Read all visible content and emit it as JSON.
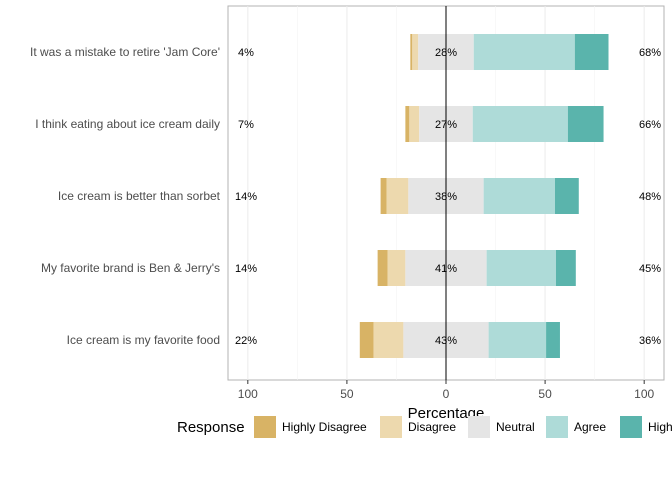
{
  "chart_data": {
    "type": "bar",
    "subtype": "diverging-stacked-likert",
    "xlabel": "Percentage",
    "xlim": [
      -110,
      110
    ],
    "xticks": [
      -100,
      -50,
      0,
      50,
      100
    ],
    "xtick_labels": [
      "100",
      "50",
      "0",
      "50",
      "100"
    ],
    "grid": true,
    "legend_position": "bottom",
    "legend_title": "Response",
    "levels": [
      "Highly Disagree",
      "Disagree",
      "Neutral",
      "Agree",
      "Highly Agree"
    ],
    "colors": {
      "Highly Disagree": "#D8B365",
      "Disagree": "#EDD9AE",
      "Neutral": "#E5E5E5",
      "Agree": "#AEDBD8",
      "Highly Agree": "#5AB4AC"
    },
    "items": [
      {
        "label": "It was a mistake to retire 'Jam Core'",
        "values": [
          1,
          3,
          28,
          51,
          17
        ],
        "low_label": "4%",
        "neutral_label": "28%",
        "high_label": "68%"
      },
      {
        "label": "I think eating about ice cream daily",
        "values": [
          2,
          5,
          27,
          48,
          18
        ],
        "low_label": "7%",
        "neutral_label": "27%",
        "high_label": "66%"
      },
      {
        "label": "Ice cream is better than sorbet",
        "values": [
          3,
          11,
          38,
          36,
          12
        ],
        "low_label": "14%",
        "neutral_label": "38%",
        "high_label": "48%"
      },
      {
        "label": "My favorite brand is Ben & Jerry's",
        "values": [
          5,
          9,
          41,
          35,
          10
        ],
        "low_label": "14%",
        "neutral_label": "41%",
        "high_label": "45%"
      },
      {
        "label": "Ice cream is my favorite food",
        "values": [
          7,
          15,
          43,
          29,
          7
        ],
        "low_label": "22%",
        "neutral_label": "43%",
        "high_label": "36%"
      }
    ]
  },
  "legend_labels": [
    "Highly Disagree",
    "Disagree",
    "Neutral",
    "Agree",
    "Highly Agree"
  ]
}
